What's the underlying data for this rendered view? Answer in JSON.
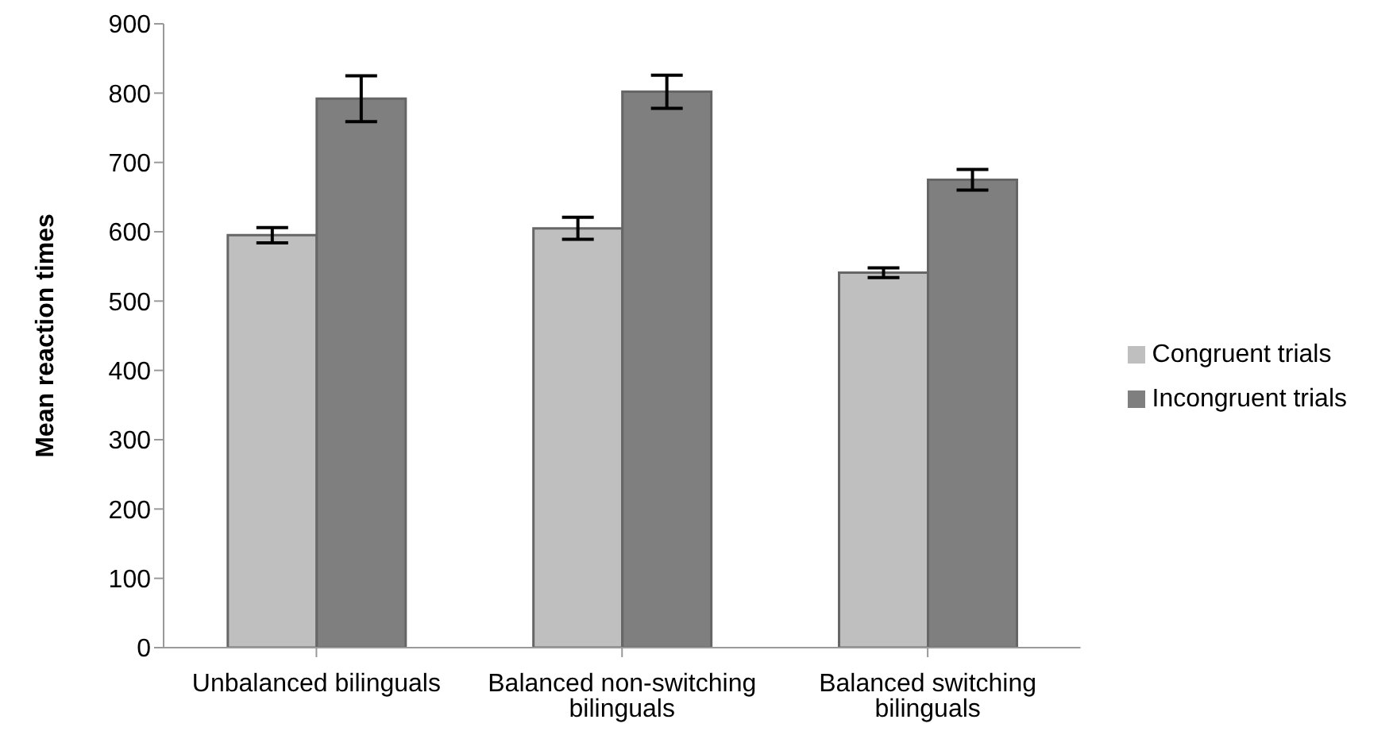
{
  "chart_data": {
    "type": "bar",
    "ylabel": "Mean reaction times",
    "categories": [
      "Unbalanced bilinguals",
      "Balanced non-switching bilinguals",
      "Balanced switching bilinguals"
    ],
    "series": [
      {
        "name": "Congruent trials",
        "color": "#bfbfbf",
        "values": [
          595,
          605,
          541
        ],
        "errors": [
          11,
          16,
          7
        ]
      },
      {
        "name": "Incongruent trials",
        "color": "#7f7f7f",
        "values": [
          792,
          802,
          675
        ],
        "errors": [
          33,
          24,
          15
        ]
      }
    ],
    "ylim": [
      0,
      900
    ],
    "yticks": [
      0,
      100,
      200,
      300,
      400,
      500,
      600,
      700,
      800,
      900
    ],
    "grid": false,
    "legend": "right"
  }
}
